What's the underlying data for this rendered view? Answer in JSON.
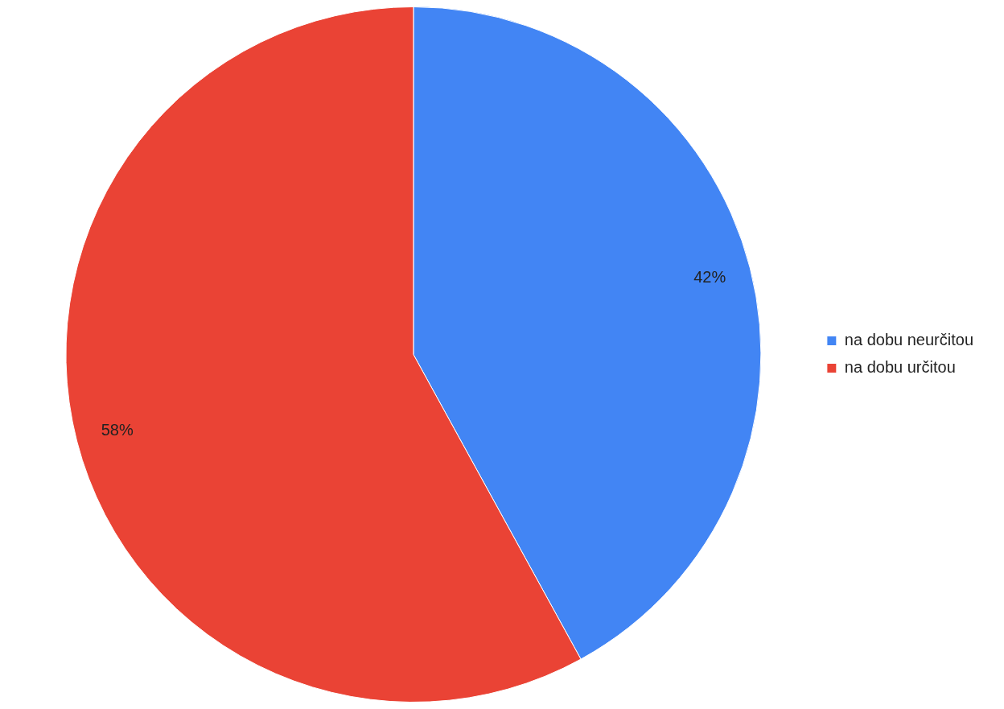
{
  "chart_data": {
    "type": "pie",
    "categories": [
      "na dobu neurčitou",
      "na dobu určitou"
    ],
    "values": [
      42,
      58
    ],
    "colors": [
      "#4285f4",
      "#ea4335"
    ],
    "value_labels": [
      "42%",
      "58%"
    ],
    "legend": "right"
  }
}
